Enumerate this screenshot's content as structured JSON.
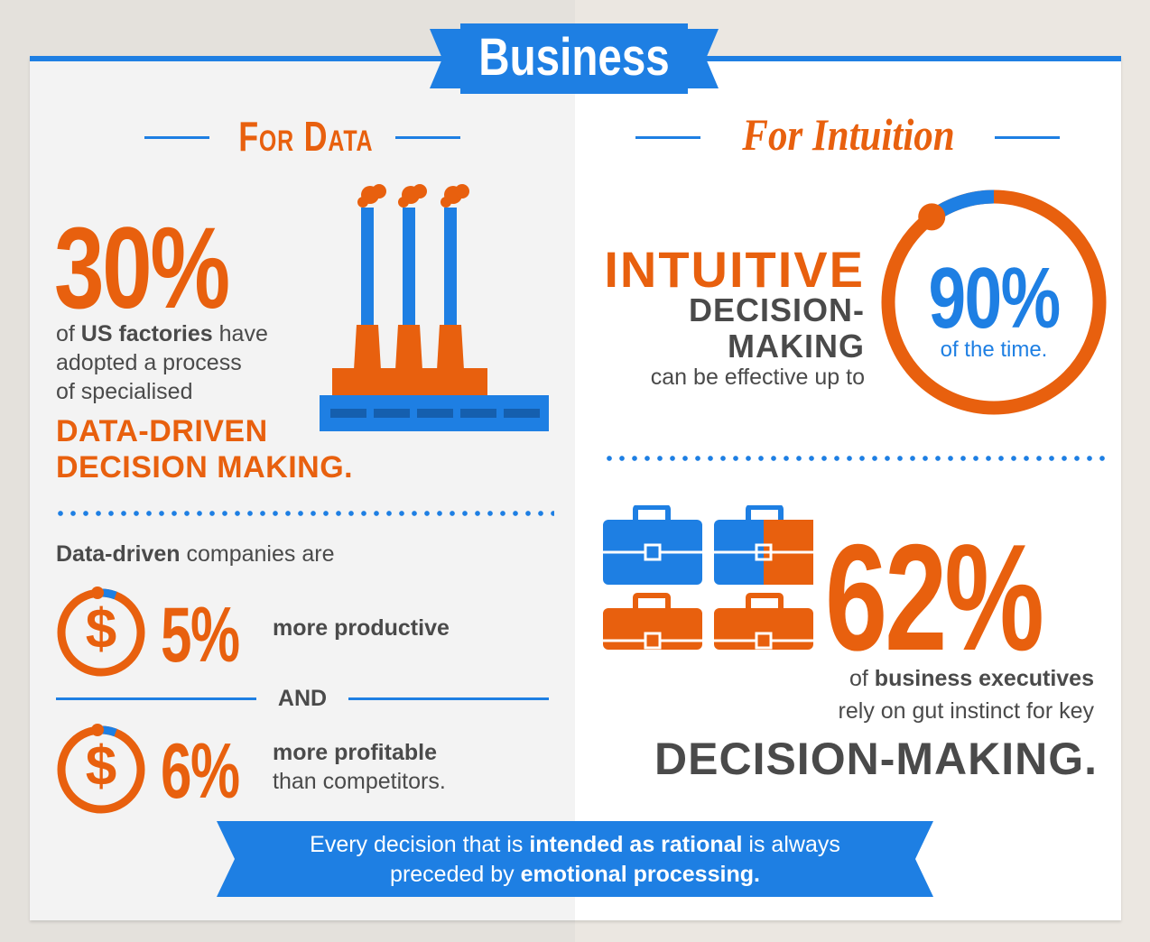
{
  "header": {
    "title": "Business"
  },
  "left": {
    "heading": "For Data",
    "stat1": {
      "value": "30%",
      "line1_pre": "of ",
      "line1_bold": "US factories",
      "line1_post": " have",
      "line2": "adopted a process",
      "line3": "of specialised",
      "emph1": "DATA-DRIVEN",
      "emph2": "DECISION MAKING."
    },
    "intro_bold": "Data-driven",
    "intro_rest": " companies are",
    "stat2": {
      "value": "5%",
      "text": "more productive"
    },
    "and_label": "AND",
    "stat3": {
      "value": "6%",
      "text1": "more profitable",
      "text2": "than competitors."
    },
    "dollar_symbol": "$"
  },
  "right": {
    "heading": "For Intuition",
    "stat1": {
      "big1": "INTUITIVE",
      "big2": "DECISION-",
      "big3": "MAKING",
      "small": "can be effective up to",
      "value": "90%",
      "value_sub": "of the time.",
      "ring_fraction": 0.9
    },
    "stat2": {
      "value": "62%",
      "line1_pre": "of ",
      "line1_bold": "business executives",
      "line2": "rely on gut instinct for key",
      "emph": "DECISION-MAKING.",
      "icon_fraction": 0.625
    }
  },
  "banner": {
    "l1_pre": "Every decision that is ",
    "l1_bold": "intended as rational",
    "l1_post": " is always",
    "l2_pre": "preceded by ",
    "l2_bold": "emotional processing."
  },
  "colors": {
    "orange": "#e8600e",
    "blue": "#1e7fe3",
    "gray": "#4a4a4a"
  }
}
